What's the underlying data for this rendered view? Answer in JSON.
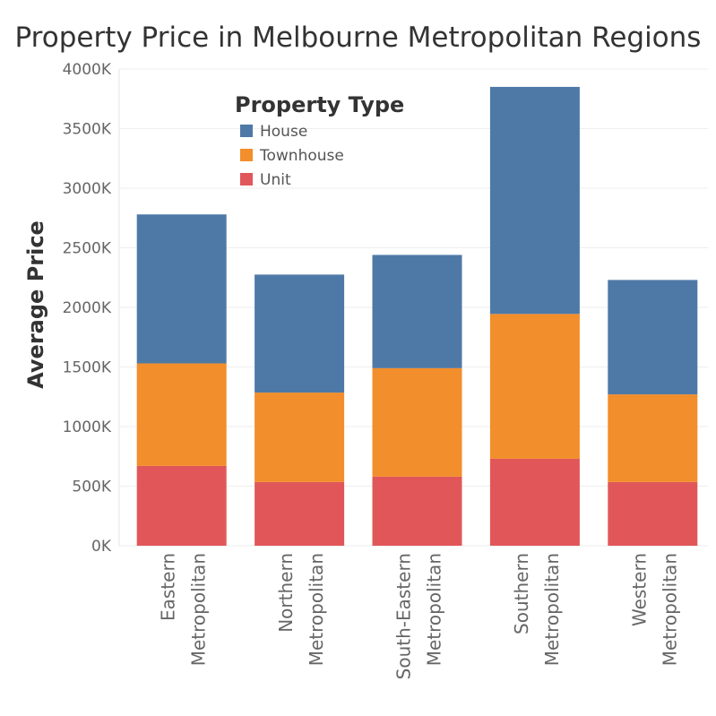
{
  "chart_data": {
    "type": "bar",
    "stacked": true,
    "title": "Property Price in Melbourne Metropolitan Regions",
    "xlabel": "",
    "ylabel": "Average Price",
    "ylim": [
      0,
      4000
    ],
    "y_ticks": [
      "0K",
      "500K",
      "1000K",
      "1500K",
      "2000K",
      "2500K",
      "3000K",
      "3500K",
      "4000K"
    ],
    "y_tick_values": [
      0,
      500,
      1000,
      1500,
      2000,
      2500,
      3000,
      3500,
      4000
    ],
    "categories": [
      [
        "Eastern",
        "Metropolitan"
      ],
      [
        "Northern",
        "Metropolitan"
      ],
      [
        "South-Eastern",
        "Metropolitan"
      ],
      [
        "Southern",
        "Metropolitan"
      ],
      [
        "Western",
        "Metropolitan"
      ]
    ],
    "series": [
      {
        "name": "Unit",
        "color": "#e15759",
        "values": [
          670,
          535,
          580,
          730,
          535
        ]
      },
      {
        "name": "Townhouse",
        "color": "#f28e2b",
        "values": [
          860,
          750,
          910,
          1215,
          735
        ]
      },
      {
        "name": "House",
        "color": "#4e79a7",
        "values": [
          1250,
          990,
          950,
          1905,
          960
        ]
      }
    ],
    "legend": {
      "title": "Property Type",
      "entries": [
        "House",
        "Townhouse",
        "Unit"
      ],
      "position": "top-left"
    },
    "grid": true
  }
}
